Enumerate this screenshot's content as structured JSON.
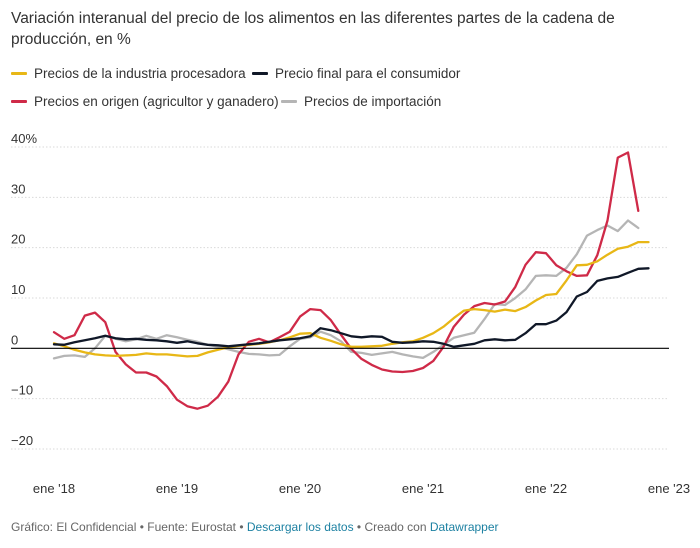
{
  "header": {
    "title": "Variación interanual del precio de los alimentos en las diferentes partes de la cadena de producción, en %"
  },
  "colors": {
    "industria": "#e8b716",
    "consumidor": "#101828",
    "origen": "#cf2a48",
    "importacion": "#b5b5b5",
    "grid": "#d9d9d9",
    "axis_text": "#333333"
  },
  "footer": {
    "grafico": "Gráfico: El Confidencial",
    "sep1": " • ",
    "fuente": "Fuente: Eurostat",
    "sep2": " • ",
    "descargar": "Descargar los datos",
    "sep3": " • ",
    "creado": "Creado con ",
    "datawrapper": "Datawrapper"
  },
  "chart_data": {
    "type": "line",
    "title": "Variación interanual del precio de los alimentos en las diferentes partes de la cadena de producción, en %",
    "xlabel": "",
    "ylabel": "",
    "grid": true,
    "legend_position": "top",
    "x": [
      "2018-01",
      "2018-02",
      "2018-03",
      "2018-04",
      "2018-05",
      "2018-06",
      "2018-07",
      "2018-08",
      "2018-09",
      "2018-10",
      "2018-11",
      "2018-12",
      "2019-01",
      "2019-02",
      "2019-03",
      "2019-04",
      "2019-05",
      "2019-06",
      "2019-07",
      "2019-08",
      "2019-09",
      "2019-10",
      "2019-11",
      "2019-12",
      "2020-01",
      "2020-02",
      "2020-03",
      "2020-04",
      "2020-05",
      "2020-06",
      "2020-07",
      "2020-08",
      "2020-09",
      "2020-10",
      "2020-11",
      "2020-12",
      "2021-01",
      "2021-02",
      "2021-03",
      "2021-04",
      "2021-05",
      "2021-06",
      "2021-07",
      "2021-08",
      "2021-09",
      "2021-10",
      "2021-11",
      "2021-12",
      "2022-01",
      "2022-02",
      "2022-03",
      "2022-04",
      "2022-05",
      "2022-06",
      "2022-07",
      "2022-08",
      "2022-09",
      "2022-10",
      "2022-11"
    ],
    "xlim": [
      "2018-01",
      "2023-01"
    ],
    "x_ticks": [
      "ene '18",
      "ene '19",
      "ene '20",
      "ene '21",
      "ene '22",
      "ene '23"
    ],
    "y_ticks": [
      "40%",
      "30",
      "20",
      "10",
      "0",
      "−10",
      "−20"
    ],
    "ylim": [
      -20,
      40
    ],
    "series": [
      {
        "name": "Precios de la industria procesadora",
        "color_key": "industria",
        "values": [
          1.0,
          0.4,
          -0.3,
          -0.8,
          -1.2,
          -1.4,
          -1.5,
          -1.4,
          -1.3,
          -1.0,
          -1.2,
          -1.2,
          -1.4,
          -1.6,
          -1.5,
          -0.8,
          -0.3,
          0.2,
          0.5,
          0.7,
          0.9,
          1.2,
          1.6,
          2.2,
          2.9,
          3.0,
          2.1,
          1.5,
          0.8,
          0.3,
          0.3,
          0.4,
          0.5,
          0.9,
          1.2,
          1.4,
          2.1,
          3.0,
          4.3,
          6.0,
          7.5,
          7.8,
          7.6,
          7.3,
          7.7,
          7.4,
          8.2,
          9.5,
          10.6,
          10.8,
          13.5,
          16.5,
          16.6,
          17.3,
          18.6,
          19.8,
          20.2,
          21.1,
          21.1
        ]
      },
      {
        "name": "Precio final para el consumidor",
        "color_key": "consumidor",
        "values": [
          0.8,
          0.7,
          1.2,
          1.6,
          2.0,
          2.5,
          2.0,
          1.8,
          1.9,
          1.7,
          1.6,
          1.4,
          1.1,
          1.4,
          1.0,
          0.7,
          0.6,
          0.4,
          0.6,
          0.8,
          1.0,
          1.3,
          1.6,
          1.8,
          2.0,
          2.4,
          4.0,
          3.6,
          3.0,
          2.4,
          2.2,
          2.4,
          2.3,
          1.3,
          1.1,
          1.2,
          1.4,
          1.3,
          0.9,
          0.3,
          0.6,
          0.9,
          1.6,
          1.8,
          1.6,
          1.7,
          3.0,
          4.8,
          4.8,
          5.5,
          7.2,
          10.3,
          11.2,
          13.4,
          13.9,
          14.2,
          15.0,
          15.8,
          15.9
        ]
      },
      {
        "name": "Precios en origen (agricultor y ganadero)",
        "color_key": "origen",
        "values": [
          3.2,
          1.9,
          2.6,
          6.5,
          7.1,
          5.2,
          -0.7,
          -3.2,
          -4.8,
          -4.8,
          -5.6,
          -7.5,
          -10.2,
          -11.5,
          -12.0,
          -11.4,
          -9.6,
          -6.6,
          -1.2,
          1.3,
          1.9,
          1.2,
          2.2,
          3.3,
          6.3,
          7.8,
          7.6,
          5.6,
          2.7,
          -0.1,
          -2.1,
          -3.3,
          -4.2,
          -4.6,
          -4.7,
          -4.5,
          -3.9,
          -2.5,
          0.3,
          4.3,
          6.7,
          8.4,
          9.0,
          8.7,
          9.3,
          12.2,
          16.6,
          19.1,
          18.9,
          16.5,
          15.3,
          14.4,
          14.5,
          18.5,
          25.4,
          37.9,
          38.9,
          27.3,
          null
        ]
      },
      {
        "name": "Precios de importación",
        "color_key": "importacion",
        "values": [
          -2.0,
          -1.5,
          -1.4,
          -1.7,
          0.0,
          2.5,
          1.9,
          1.4,
          1.8,
          2.5,
          1.9,
          2.6,
          2.2,
          1.7,
          1.3,
          0.7,
          0.3,
          -0.2,
          -0.7,
          -1.1,
          -1.2,
          -1.4,
          -1.3,
          0.4,
          1.9,
          2.2,
          3.3,
          2.6,
          1.4,
          -0.7,
          -0.9,
          -1.3,
          -1.0,
          -0.7,
          -1.2,
          -1.6,
          -1.9,
          -0.7,
          0.7,
          2.1,
          2.6,
          3.1,
          5.8,
          8.8,
          8.6,
          10.0,
          11.7,
          14.4,
          14.5,
          14.4,
          16.0,
          18.7,
          22.4,
          23.5,
          24.4,
          23.3,
          25.4,
          23.9,
          null
        ]
      }
    ]
  }
}
